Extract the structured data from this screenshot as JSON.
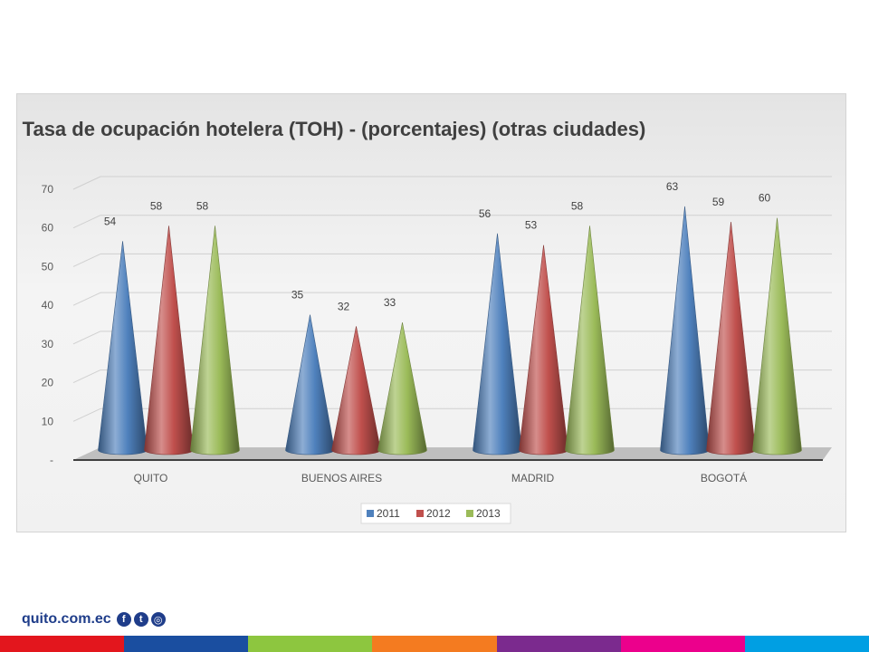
{
  "chart_data": {
    "type": "bar",
    "title": "Tasa de ocupación hotelera (TOH) - (porcentajes) (otras ciudades)",
    "categories": [
      "QUITO",
      "BUENOS AIRES",
      "MADRID",
      "BOGOTÁ"
    ],
    "series": [
      {
        "name": "2011",
        "values": [
          54,
          35,
          56,
          63
        ],
        "color": "#4f81bd"
      },
      {
        "name": "2012",
        "values": [
          58,
          32,
          53,
          59
        ],
        "color": "#c0504d"
      },
      {
        "name": "2013",
        "values": [
          58,
          33,
          58,
          60
        ],
        "color": "#9bbb59"
      }
    ],
    "ylim": [
      0,
      70
    ],
    "y_ticks": [
      "-",
      "10",
      "20",
      "30",
      "40",
      "50",
      "60",
      "70"
    ],
    "grid": true,
    "legend": "bottom",
    "mark_shape": "cone"
  },
  "footer": {
    "site": "quito.com.ec",
    "social_icons": [
      "facebook-icon",
      "twitter-icon",
      "instagram-icon"
    ],
    "color_bar": [
      "#e3161d",
      "#1a4ea0",
      "#8dc63f",
      "#f47b20",
      "#7b2a8e",
      "#ec008c",
      "#009fe3"
    ]
  }
}
